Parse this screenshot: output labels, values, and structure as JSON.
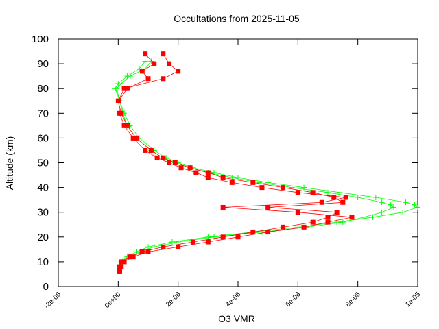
{
  "chart_data": {
    "type": "scatter",
    "title": "Occultations from 2025-11-05",
    "x_label": "O3 VMR",
    "y_label": "Altitude (km)",
    "xlim": [
      -2e-06,
      1e-05
    ],
    "xticks": [
      {
        "value": -2e-06,
        "label": "-2e-06"
      },
      {
        "value": 0,
        "label": "0e+00"
      },
      {
        "value": 2e-06,
        "label": "2e-06"
      },
      {
        "value": 4e-06,
        "label": "4e-06"
      },
      {
        "value": 6e-06,
        "label": "6e-06"
      },
      {
        "value": 8e-06,
        "label": "8e-06"
      },
      {
        "value": 1e-05,
        "label": "1e-05"
      }
    ],
    "ylim": [
      0,
      100
    ],
    "yticks": [
      0,
      10,
      20,
      30,
      40,
      50,
      60,
      70,
      80,
      90,
      100
    ],
    "series": [
      {
        "color": "#00ff00",
        "marker": "cross",
        "x": [
          5e-08,
          1e-07,
          3e-07,
          6e-07,
          1e-06,
          1.8e-06,
          3e-06,
          4.5e-06,
          6e-06,
          7.3e-06,
          8.5e-06,
          9.5e-06,
          1e-05,
          9.9e-06,
          9.6e-06,
          8.6e-06,
          7.4e-06,
          6.2e-06,
          5e-06,
          4e-06,
          3.2e-06,
          2.5e-06,
          2e-06,
          1.6e-06,
          1.2e-06,
          7e-07,
          4e-07,
          2e-07,
          5e-08,
          -1e-07,
          0,
          3e-07,
          7e-07,
          9e-07
        ],
        "values": [
          8,
          10,
          12,
          14,
          16,
          18,
          20,
          22,
          24,
          26,
          28,
          30,
          32,
          33,
          34,
          36,
          38,
          40,
          42,
          44,
          46,
          48,
          50,
          52,
          55,
          60,
          65,
          70,
          75,
          80,
          82,
          85,
          88,
          91
        ]
      },
      {
        "color": "#00ff00",
        "marker": "cross",
        "x": [
          8e-08,
          1.5e-07,
          4e-07,
          7e-07,
          1.2e-06,
          2e-06,
          3.2e-06,
          4.8e-06,
          6.3e-06,
          7.5e-06,
          8.2e-06,
          8.8e-06,
          9.2e-06,
          9.1e-06,
          8.8e-06,
          8e-06,
          7e-06,
          5.8e-06,
          4.7e-06,
          3.8e-06,
          3e-06,
          2.4e-06,
          1.9e-06,
          1.5e-06,
          1.1e-06,
          6e-07,
          3e-07,
          1.5e-07,
          5e-08,
          -5e-08,
          1e-07,
          4e-07,
          9e-07,
          1.1e-06
        ],
        "values": [
          8,
          10,
          12,
          14,
          16,
          18,
          20,
          22,
          24,
          26,
          28,
          30,
          32,
          33,
          34,
          36,
          38,
          40,
          42,
          44,
          46,
          48,
          50,
          52,
          55,
          60,
          65,
          70,
          75,
          80,
          82,
          85,
          88,
          91
        ]
      },
      {
        "color": "#ff0000",
        "marker": "square",
        "x": [
          3e-08,
          5e-08,
          1e-07,
          4e-07,
          8e-07,
          1.5e-06,
          2.5e-06,
          3.5e-06,
          4.5e-06,
          5.5e-06,
          6.5e-06,
          7e-06,
          7.3e-06,
          5e-06,
          7.5e-06,
          7.2e-06,
          6.5e-06,
          5.5e-06,
          4.5e-06,
          3.5e-06,
          3e-06,
          2.4e-06,
          1.9e-06,
          1.5e-06,
          1.1e-06,
          6e-07,
          3e-07,
          1e-07,
          0,
          2e-07,
          1.5e-06,
          2e-06,
          1.7e-06,
          1.5e-06
        ],
        "values": [
          6,
          8,
          10,
          12,
          14,
          16,
          18,
          20,
          22,
          24,
          26,
          28,
          30,
          32,
          34,
          36,
          38,
          40,
          42,
          44,
          46,
          48,
          50,
          52,
          55,
          60,
          65,
          70,
          75,
          80,
          84,
          87,
          90,
          94
        ]
      },
      {
        "color": "#ff0000",
        "marker": "square",
        "x": [
          5e-08,
          1e-07,
          2e-07,
          5e-07,
          1e-06,
          2e-06,
          3e-06,
          4e-06,
          5e-06,
          6.2e-06,
          7e-06,
          7.8e-06,
          6e-06,
          3.5e-06,
          6.8e-06,
          7.6e-06,
          6e-06,
          4.8e-06,
          3.8e-06,
          3e-06,
          2.6e-06,
          2.1e-06,
          1.7e-06,
          1.3e-06,
          9e-07,
          5e-07,
          2e-07,
          5e-08,
          1e-08,
          3e-07,
          1e-06,
          8e-07,
          1.2e-06,
          9e-07
        ],
        "values": [
          6,
          8,
          10,
          12,
          14,
          16,
          18,
          20,
          22,
          24,
          26,
          28,
          30,
          32,
          34,
          36,
          38,
          40,
          42,
          44,
          46,
          48,
          50,
          52,
          55,
          60,
          65,
          70,
          75,
          80,
          84,
          87,
          90,
          94
        ]
      }
    ]
  }
}
